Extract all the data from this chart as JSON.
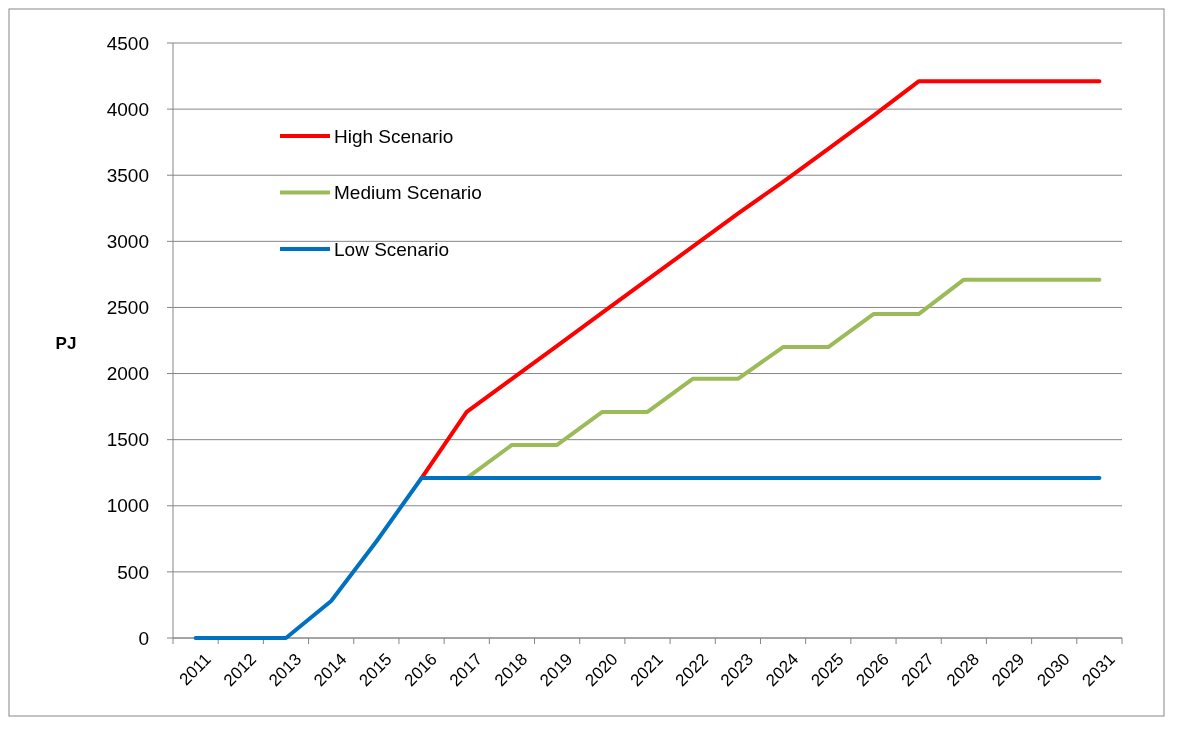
{
  "chart_data": {
    "type": "line",
    "ylabel": "PJ",
    "categories": [
      "2011",
      "2012",
      "2013",
      "2014",
      "2015",
      "2016",
      "2017",
      "2018",
      "2019",
      "2020",
      "2021",
      "2022",
      "2023",
      "2024",
      "2025",
      "2026",
      "2027",
      "2028",
      "2029",
      "2030",
      "2031"
    ],
    "series": [
      {
        "name": "High Scenario",
        "color": "#ff0000",
        "values": [
          null,
          null,
          null,
          null,
          null,
          1210,
          1710,
          1960,
          2210,
          2460,
          2710,
          2960,
          3210,
          3450,
          3700,
          3950,
          4210,
          4210,
          4210,
          4210,
          4210
        ]
      },
      {
        "name": "Medium Scenario",
        "color": "#9bbb59",
        "values": [
          null,
          null,
          null,
          null,
          null,
          null,
          1210,
          1460,
          1460,
          1710,
          1710,
          1960,
          1960,
          2200,
          2200,
          2450,
          2450,
          2710,
          2710,
          2710,
          2710
        ]
      },
      {
        "name": "Low Scenario",
        "color": "#0070c0",
        "values": [
          0,
          0,
          0,
          280,
          730,
          1210,
          1210,
          1210,
          1210,
          1210,
          1210,
          1210,
          1210,
          1210,
          1210,
          1210,
          1210,
          1210,
          1210,
          1210,
          1210
        ]
      }
    ],
    "ylim": [
      0,
      4500
    ],
    "yticks": [
      0,
      500,
      1000,
      1500,
      2000,
      2500,
      3000,
      3500,
      4000,
      4500
    ],
    "grid": "y",
    "legend": "top left",
    "marker": "none",
    "line_style": "solid"
  }
}
